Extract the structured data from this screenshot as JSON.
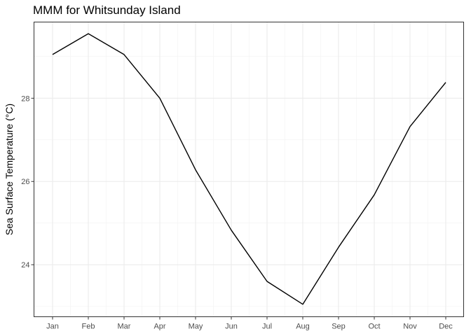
{
  "chart_data": {
    "type": "line",
    "title": "MMM for Whitsunday Island",
    "xlabel": "",
    "ylabel": "Sea Surface Temperature (°C)",
    "categories": [
      "Jan",
      "Feb",
      "Mar",
      "Apr",
      "May",
      "Jun",
      "Jul",
      "Aug",
      "Sep",
      "Oct",
      "Nov",
      "Dec"
    ],
    "series": [
      {
        "values": [
          29.05,
          29.55,
          29.05,
          28.0,
          26.28,
          24.83,
          23.6,
          23.05,
          24.42,
          25.68,
          27.32,
          28.38
        ]
      }
    ],
    "yticks": [
      24,
      26,
      28
    ],
    "ytick_labels": [
      "24",
      "26",
      "28"
    ],
    "ylim": [
      22.75,
      29.83
    ],
    "grid": true,
    "line_color": "#000000",
    "legend": "none"
  }
}
